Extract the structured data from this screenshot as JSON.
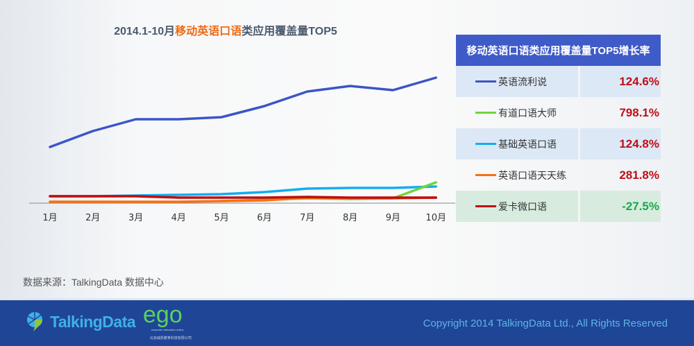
{
  "title": {
    "prefix": "2014.1-10月",
    "highlight": "移动英语口语",
    "suffix": "类应用覆盖量TOP5"
  },
  "chart_data": {
    "type": "line",
    "title": "2014.1-10月移动英语口语类应用覆盖量TOP5",
    "categories": [
      "1月",
      "2月",
      "3月",
      "4月",
      "5月",
      "6月",
      "7月",
      "8月",
      "9月",
      "10月"
    ],
    "y_units": "relative (no axis shown)",
    "series": [
      {
        "name": "英语流利说",
        "color": "#3b55c8",
        "values": [
          81,
          104,
          121,
          121,
          124,
          140,
          161,
          169,
          163,
          181
        ]
      },
      {
        "name": "基础英语口语",
        "color": "#12aef0",
        "values": [
          10,
          10,
          11,
          12,
          13,
          16,
          21,
          22,
          22,
          24
        ]
      },
      {
        "name": "有道口语大师",
        "color": "#6fd53a",
        "values": [
          null,
          null,
          null,
          null,
          3,
          5,
          7,
          6,
          7,
          30
        ]
      },
      {
        "name": "英语口语天天练",
        "color": "#f7720f",
        "values": [
          2,
          2,
          2,
          2,
          3,
          4,
          8,
          7,
          7,
          8
        ]
      },
      {
        "name": "爱卡微口语",
        "color": "#c00d12",
        "values": [
          10,
          10,
          10,
          8,
          8,
          8,
          9,
          8,
          8,
          8
        ]
      }
    ]
  },
  "table": {
    "header": "移动英语口语类应用覆盖量TOP5增长率",
    "rows": [
      {
        "name": "英语流利说",
        "rate": "124.6%",
        "color": "#3b55c8",
        "rate_color": "#c00d17"
      },
      {
        "name": "有道口语大师",
        "rate": "798.1%",
        "color": "#6fd53a",
        "rate_color": "#c00d17"
      },
      {
        "name": "基础英语口语",
        "rate": "124.8%",
        "color": "#12aef0",
        "rate_color": "#c00d17"
      },
      {
        "name": "英语口语天天练",
        "rate": "281.8%",
        "color": "#f7720f",
        "rate_color": "#c00d17"
      },
      {
        "name": "爱卡微口语",
        "rate": "-27.5%",
        "color": "#c00d12",
        "rate_color": "#19a84a"
      }
    ]
  },
  "source": "数据来源：TalkingData 数据中心",
  "footer": {
    "logo": "TalkingData",
    "ego_logo": "ego",
    "ego_tagline": "empower education online",
    "ego_company": "北京威凯教育科技有限公司",
    "copyright": "Copyright 2014 TalkingData Ltd., All Rights Reserved"
  }
}
